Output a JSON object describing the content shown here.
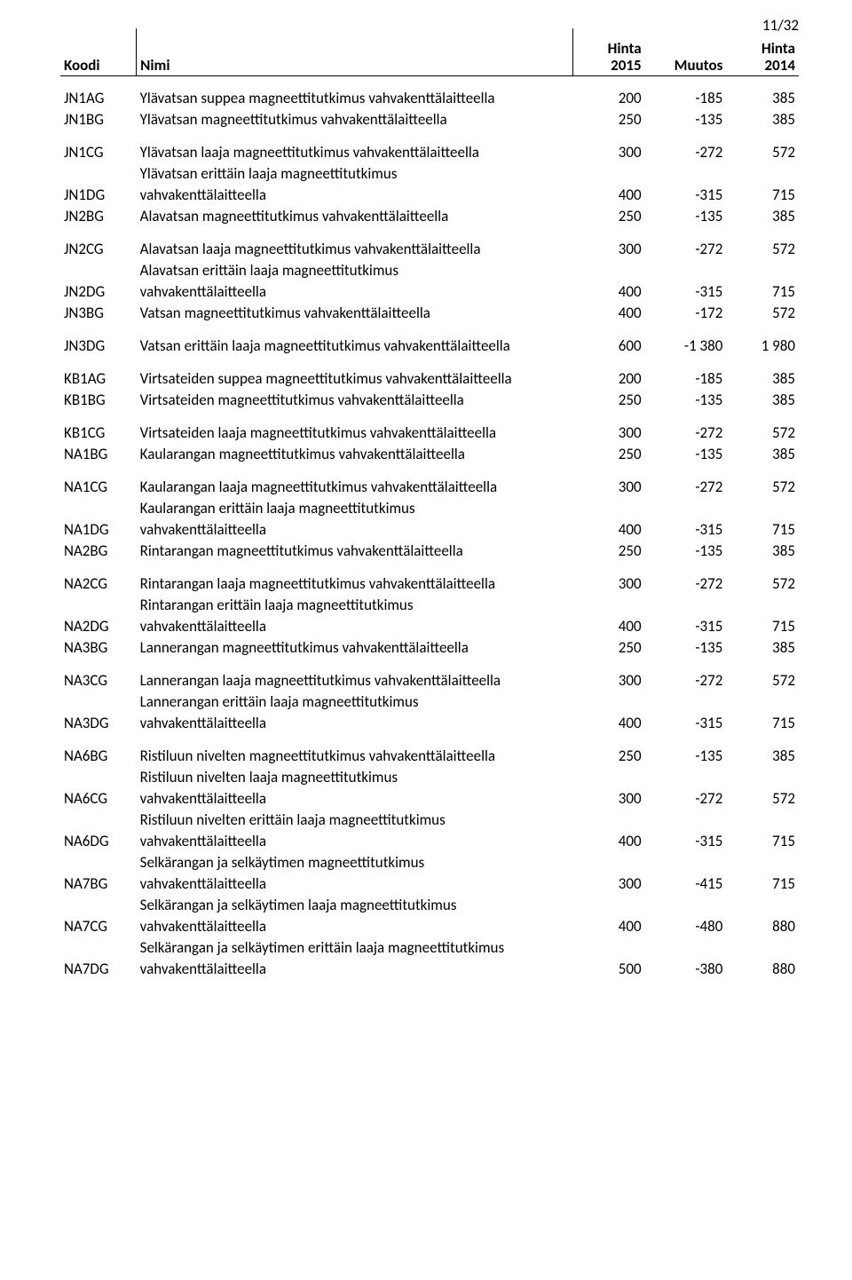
{
  "pageNumber": "11/32",
  "headers": {
    "code": "Koodi",
    "name": "Nimi",
    "priceTop": "Hinta",
    "y2015": "2015",
    "change": "Muutos",
    "y2014": "2014"
  },
  "colors": {
    "text": "#000000",
    "background": "#ffffff",
    "border": "#000000"
  },
  "font": {
    "family": "Calibri, Arial, sans-serif",
    "size_pt": 11
  },
  "groups": [
    [
      {
        "code": "JN1AG",
        "name": "Ylävatsan suppea magneettitutkimus vahvakenttälaitteella",
        "p2015": "200",
        "chg": "-185",
        "p2014": "385"
      },
      {
        "code": "JN1BG",
        "name": "Ylävatsan magneettitutkimus vahvakenttälaitteella",
        "p2015": "250",
        "chg": "-135",
        "p2014": "385"
      }
    ],
    [
      {
        "code": "JN1CG",
        "name": "Ylävatsan laaja magneettitutkimus vahvakenttälaitteella",
        "p2015": "300",
        "chg": "-272",
        "p2014": "572"
      },
      {
        "code": "",
        "name": "Ylävatsan erittäin laaja magneettitutkimus",
        "p2015": "",
        "chg": "",
        "p2014": ""
      },
      {
        "code": "JN1DG",
        "name": "vahvakenttälaitteella",
        "p2015": "400",
        "chg": "-315",
        "p2014": "715"
      },
      {
        "code": "JN2BG",
        "name": "Alavatsan magneettitutkimus vahvakenttälaitteella",
        "p2015": "250",
        "chg": "-135",
        "p2014": "385"
      }
    ],
    [
      {
        "code": "JN2CG",
        "name": "Alavatsan laaja magneettitutkimus vahvakenttälaitteella",
        "p2015": "300",
        "chg": "-272",
        "p2014": "572"
      },
      {
        "code": "",
        "name": "Alavatsan erittäin laaja magneettitutkimus",
        "p2015": "",
        "chg": "",
        "p2014": ""
      },
      {
        "code": "JN2DG",
        "name": "vahvakenttälaitteella",
        "p2015": "400",
        "chg": "-315",
        "p2014": "715"
      },
      {
        "code": "JN3BG",
        "name": "Vatsan magneettitutkimus vahvakenttälaitteella",
        "p2015": "400",
        "chg": "-172",
        "p2014": "572"
      }
    ],
    [
      {
        "code": "JN3DG",
        "name": "Vatsan erittäin laaja magneettitutkimus vahvakenttälaitteella",
        "p2015": "600",
        "chg": "-1 380",
        "p2014": "1 980"
      }
    ],
    [
      {
        "code": "KB1AG",
        "name": "Virtsateiden suppea magneettitutkimus vahvakenttälaitteella",
        "p2015": "200",
        "chg": "-185",
        "p2014": "385"
      },
      {
        "code": "KB1BG",
        "name": "Virtsateiden magneettitutkimus vahvakenttälaitteella",
        "p2015": "250",
        "chg": "-135",
        "p2014": "385"
      }
    ],
    [
      {
        "code": "KB1CG",
        "name": "Virtsateiden laaja magneettitutkimus vahvakenttälaitteella",
        "p2015": "300",
        "chg": "-272",
        "p2014": "572"
      },
      {
        "code": "NA1BG",
        "name": "Kaularangan magneettitutkimus vahvakenttälaitteella",
        "p2015": "250",
        "chg": "-135",
        "p2014": "385"
      }
    ],
    [
      {
        "code": "NA1CG",
        "name": "Kaularangan laaja magneettitutkimus vahvakenttälaitteella",
        "p2015": "300",
        "chg": "-272",
        "p2014": "572"
      },
      {
        "code": "",
        "name": "Kaularangan erittäin laaja magneettitutkimus",
        "p2015": "",
        "chg": "",
        "p2014": ""
      },
      {
        "code": "NA1DG",
        "name": "vahvakenttälaitteella",
        "p2015": "400",
        "chg": "-315",
        "p2014": "715"
      },
      {
        "code": "NA2BG",
        "name": "Rintarangan magneettitutkimus vahvakenttälaitteella",
        "p2015": "250",
        "chg": "-135",
        "p2014": "385"
      }
    ],
    [
      {
        "code": "NA2CG",
        "name": "Rintarangan laaja magneettitutkimus vahvakenttälaitteella",
        "p2015": "300",
        "chg": "-272",
        "p2014": "572"
      },
      {
        "code": "",
        "name": "Rintarangan erittäin laaja magneettitutkimus",
        "p2015": "",
        "chg": "",
        "p2014": ""
      },
      {
        "code": "NA2DG",
        "name": "vahvakenttälaitteella",
        "p2015": "400",
        "chg": "-315",
        "p2014": "715"
      },
      {
        "code": "NA3BG",
        "name": "Lannerangan magneettitutkimus vahvakenttälaitteella",
        "p2015": "250",
        "chg": "-135",
        "p2014": "385"
      }
    ],
    [
      {
        "code": "NA3CG",
        "name": "Lannerangan laaja magneettitutkimus vahvakenttälaitteella",
        "p2015": "300",
        "chg": "-272",
        "p2014": "572"
      },
      {
        "code": "",
        "name": "Lannerangan erittäin laaja magneettitutkimus",
        "p2015": "",
        "chg": "",
        "p2014": ""
      },
      {
        "code": "NA3DG",
        "name": "vahvakenttälaitteella",
        "p2015": "400",
        "chg": "-315",
        "p2014": "715"
      }
    ],
    [
      {
        "code": "NA6BG",
        "name": "Ristiluun nivelten magneettitutkimus vahvakenttälaitteella",
        "p2015": "250",
        "chg": "-135",
        "p2014": "385"
      },
      {
        "code": "",
        "name": "Ristiluun nivelten laaja magneettitutkimus",
        "p2015": "",
        "chg": "",
        "p2014": ""
      },
      {
        "code": "NA6CG",
        "name": "vahvakenttälaitteella",
        "p2015": "300",
        "chg": "-272",
        "p2014": "572"
      },
      {
        "code": "",
        "name": "Ristiluun nivelten erittäin laaja magneettitutkimus",
        "p2015": "",
        "chg": "",
        "p2014": ""
      },
      {
        "code": "NA6DG",
        "name": "vahvakenttälaitteella",
        "p2015": "400",
        "chg": "-315",
        "p2014": "715"
      },
      {
        "code": "",
        "name": "Selkärangan ja selkäytimen magneettitutkimus",
        "p2015": "",
        "chg": "",
        "p2014": ""
      },
      {
        "code": "NA7BG",
        "name": "vahvakenttälaitteella",
        "p2015": "300",
        "chg": "-415",
        "p2014": "715"
      },
      {
        "code": "",
        "name": "Selkärangan ja selkäytimen laaja magneettitutkimus",
        "p2015": "",
        "chg": "",
        "p2014": ""
      },
      {
        "code": "NA7CG",
        "name": "vahvakenttälaitteella",
        "p2015": "400",
        "chg": "-480",
        "p2014": "880"
      },
      {
        "code": "",
        "name": "Selkärangan ja selkäytimen erittäin laaja magneettitutkimus",
        "p2015": "",
        "chg": "",
        "p2014": ""
      },
      {
        "code": "NA7DG",
        "name": "vahvakenttälaitteella",
        "p2015": "500",
        "chg": "-380",
        "p2014": "880"
      }
    ]
  ]
}
